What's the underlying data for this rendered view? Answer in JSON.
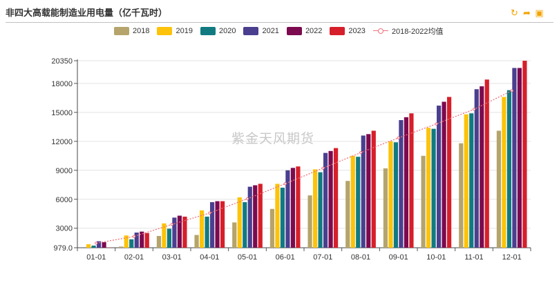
{
  "title": "非四大高载能制造业用电量（亿千瓦时）",
  "watermark": "紫金天风期货",
  "toolbar": {
    "icons": [
      "refresh-icon",
      "share-icon",
      "save-image-icon"
    ],
    "color": "#f2a400"
  },
  "legend": [
    {
      "label": "2018",
      "color": "#b5a46b"
    },
    {
      "label": "2019",
      "color": "#fcc30a"
    },
    {
      "label": "2020",
      "color": "#117a81"
    },
    {
      "label": "2021",
      "color": "#4a3f8f"
    },
    {
      "label": "2022",
      "color": "#7c0a4f"
    },
    {
      "label": "2023",
      "color": "#d61f2a"
    },
    {
      "label": "2018-2022均值",
      "color": "#f0707b"
    }
  ],
  "chart_data": {
    "type": "bar",
    "categories": [
      "01-01",
      "02-01",
      "03-01",
      "04-01",
      "05-01",
      "06-01",
      "07-01",
      "08-01",
      "09-01",
      "10-01",
      "11-01",
      "12-01"
    ],
    "ylim": [
      979,
      20350
    ],
    "yticks": [
      "979.0",
      "3000",
      "6000",
      "9000",
      "12000",
      "15000",
      "18000",
      "20350"
    ],
    "ytick_values": [
      979,
      3000,
      6000,
      9000,
      12000,
      15000,
      18000,
      20350
    ],
    "grid": true,
    "legend_position": "top",
    "series": [
      {
        "name": "2018",
        "color": "#b5a46b",
        "values": [
          null,
          1100,
          2200,
          2300,
          3600,
          5000,
          6400,
          7900,
          9200,
          10500,
          11800,
          13100
        ]
      },
      {
        "name": "2019",
        "color": "#fcc30a",
        "values": [
          1350,
          2250,
          3500,
          4850,
          6200,
          7600,
          9100,
          10500,
          12000,
          13400,
          14800,
          16600
        ]
      },
      {
        "name": "2020",
        "color": "#117a81",
        "values": [
          1200,
          1850,
          2950,
          4200,
          5700,
          7200,
          8800,
          10400,
          11900,
          13300,
          14900,
          17300
        ]
      },
      {
        "name": "2021",
        "color": "#4a3f8f",
        "values": [
          1650,
          2550,
          4100,
          5700,
          7300,
          9000,
          10800,
          12600,
          14200,
          15700,
          17400,
          19600
        ]
      },
      {
        "name": "2022",
        "color": "#7c0a4f",
        "values": [
          1550,
          2650,
          4300,
          5800,
          7450,
          9250,
          11000,
          12750,
          14500,
          16100,
          17700,
          19600
        ]
      },
      {
        "name": "2023",
        "color": "#d61f2a",
        "values": [
          1000,
          2500,
          4200,
          5800,
          7600,
          9400,
          11300,
          13100,
          14900,
          16600,
          18400,
          20350
        ]
      },
      {
        "name": "2018-2022均值",
        "type": "line",
        "color": "#f0707b",
        "values": [
          1450,
          2150,
          3390,
          4570,
          6050,
          7610,
          9220,
          10830,
          12360,
          13800,
          15320,
          17240
        ]
      }
    ]
  }
}
